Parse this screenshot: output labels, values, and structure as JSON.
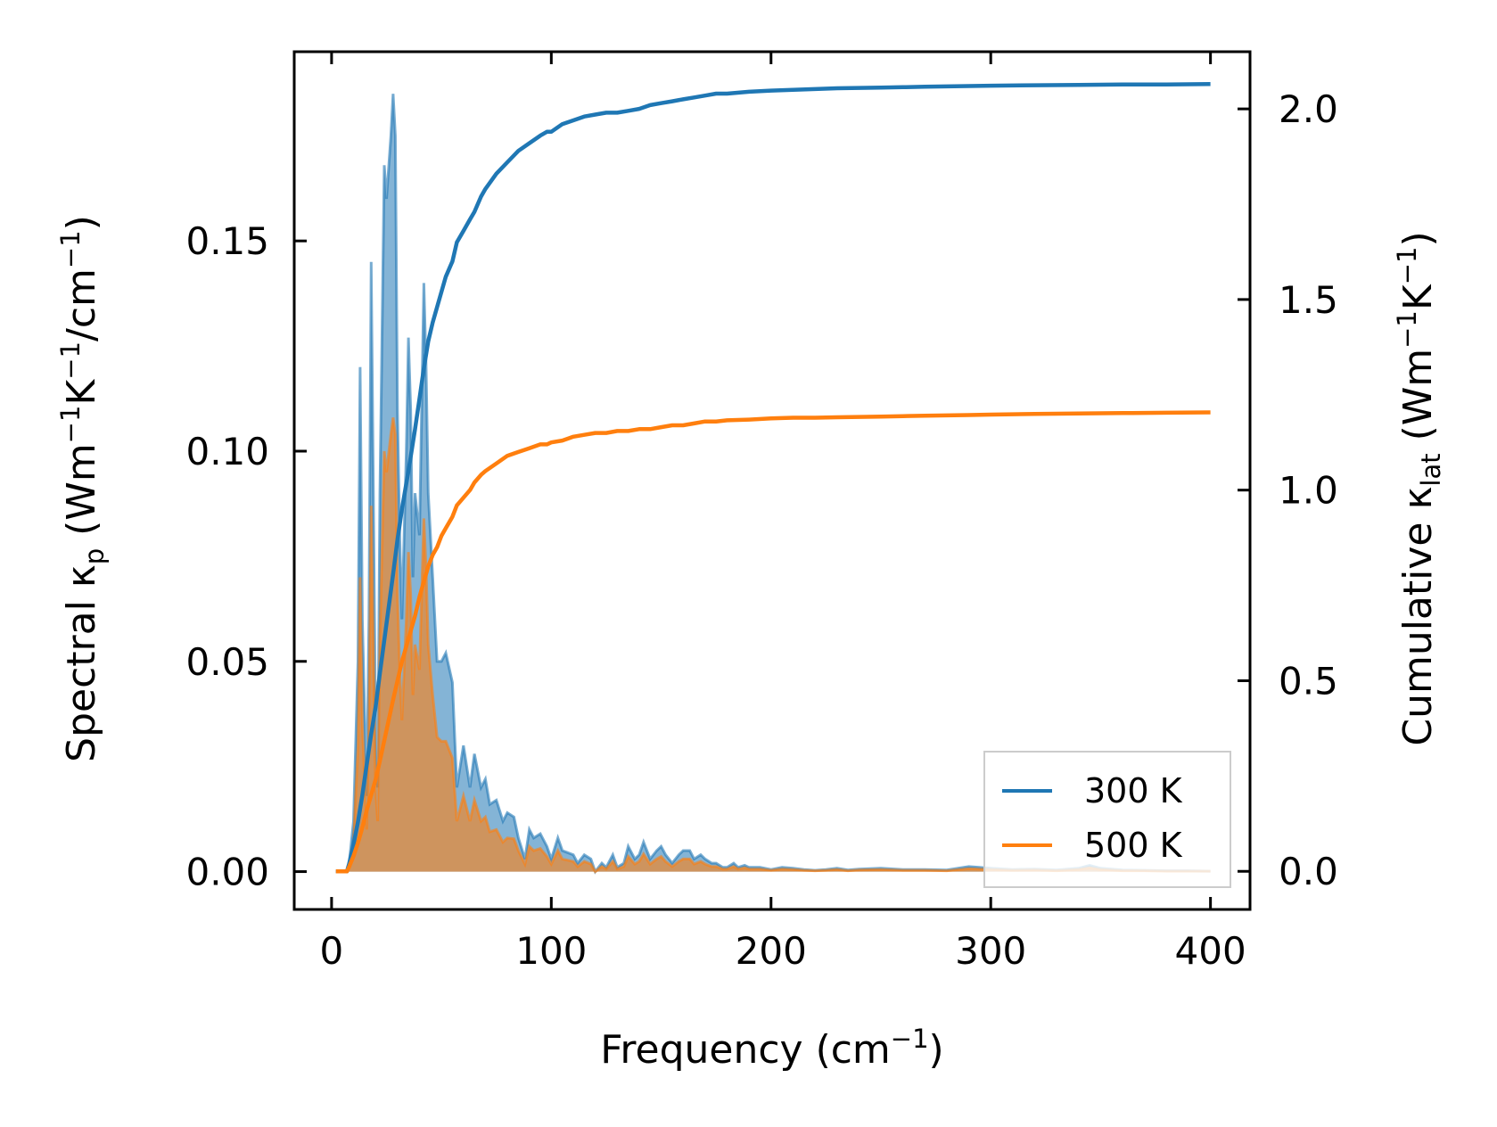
{
  "chart_data": {
    "type": "line",
    "title": "",
    "xlabel": {
      "main": "Frequency (cm",
      "sup": "−1",
      "end": ")"
    },
    "ylabel_left": {
      "a": "Spectral κ",
      "sub": "p",
      "b": " (Wm",
      "sup1": "−1",
      "c": "K",
      "sup2": "−1",
      "d": "/cm",
      "sup3": "−1",
      "e": ")"
    },
    "ylabel_right": {
      "a": "Cumulative κ",
      "sub": "lat",
      "b": " (Wm",
      "sup1": "−1",
      "c": "K",
      "sup2": "−1",
      "e": ")"
    },
    "xlim": [
      -17,
      418
    ],
    "ylim_left": [
      -0.009,
      0.195
    ],
    "ylim_right": [
      -0.1,
      2.15
    ],
    "xticks": [
      0,
      100,
      200,
      300,
      400
    ],
    "xtick_labels": [
      "0",
      "100",
      "200",
      "300",
      "400"
    ],
    "yticks_left": [
      0.0,
      0.05,
      0.1,
      0.15
    ],
    "ytick_labels_left": [
      "0.00",
      "0.05",
      "0.10",
      "0.15"
    ],
    "yticks_right": [
      0.0,
      0.5,
      1.0,
      1.5,
      2.0
    ],
    "ytick_labels_right": [
      "0.0",
      "0.5",
      "1.0",
      "1.5",
      "2.0"
    ],
    "legend": {
      "position": "lower-right",
      "entries": [
        "300 K",
        "500 K"
      ]
    },
    "series": [
      {
        "name": "300 K",
        "color": "#1f77b4",
        "spectral": {
          "x": [
            2,
            5,
            7,
            8,
            10,
            12,
            13,
            14,
            16,
            17,
            18,
            20,
            21,
            22,
            24,
            25,
            27,
            28,
            29,
            30,
            31,
            32,
            34,
            35,
            36,
            37,
            38,
            40,
            41,
            42,
            43,
            44,
            45,
            46,
            48,
            50,
            52,
            55,
            57,
            60,
            63,
            65,
            68,
            70,
            72,
            75,
            78,
            80,
            83,
            85,
            88,
            90,
            92,
            95,
            98,
            100,
            103,
            105,
            110,
            112,
            115,
            118,
            120,
            123,
            125,
            128,
            130,
            133,
            135,
            138,
            140,
            142,
            145,
            148,
            150,
            152,
            155,
            158,
            160,
            163,
            165,
            168,
            170,
            173,
            175,
            178,
            180,
            183,
            185,
            188,
            190,
            195,
            200,
            205,
            210,
            215,
            220,
            225,
            230,
            235,
            240,
            250,
            260,
            270,
            280,
            290,
            300,
            310,
            320,
            330,
            340,
            345,
            350,
            360,
            370,
            380,
            390,
            400
          ],
          "y": [
            0.0,
            0.0,
            0.0,
            0.002,
            0.012,
            0.05,
            0.12,
            0.06,
            0.018,
            0.06,
            0.145,
            0.035,
            0.02,
            0.09,
            0.168,
            0.16,
            0.175,
            0.185,
            0.175,
            0.11,
            0.08,
            0.06,
            0.1,
            0.127,
            0.11,
            0.07,
            0.09,
            0.08,
            0.11,
            0.14,
            0.12,
            0.09,
            0.08,
            0.07,
            0.05,
            0.05,
            0.052,
            0.045,
            0.02,
            0.03,
            0.02,
            0.028,
            0.02,
            0.022,
            0.016,
            0.017,
            0.012,
            0.014,
            0.013,
            0.008,
            0.003,
            0.01,
            0.008,
            0.009,
            0.006,
            0.003,
            0.008,
            0.005,
            0.004,
            0.002,
            0.004,
            0.003,
            0.0,
            0.002,
            0.001,
            0.004,
            0.001,
            0.002,
            0.006,
            0.003,
            0.004,
            0.007,
            0.003,
            0.005,
            0.006,
            0.004,
            0.002,
            0.004,
            0.005,
            0.005,
            0.003,
            0.004,
            0.003,
            0.002,
            0.002,
            0.001,
            0.001,
            0.002,
            0.001,
            0.0015,
            0.001,
            0.001,
            0.0005,
            0.001,
            0.0008,
            0.0005,
            0.0003,
            0.0005,
            0.0008,
            0.0004,
            0.0006,
            0.0008,
            0.0005,
            0.0005,
            0.0004,
            0.0012,
            0.0008,
            0.0005,
            0.0006,
            0.0004,
            0.0008,
            0.0015,
            0.0008,
            0.0004,
            0.0003,
            0.0002,
            0.0002,
            0.0001
          ]
        },
        "cumulative": {
          "x": [
            2,
            5,
            7,
            8,
            10,
            12,
            14,
            16,
            18,
            20,
            22,
            25,
            28,
            30,
            32,
            35,
            38,
            40,
            42,
            44,
            46,
            48,
            50,
            52,
            55,
            57,
            60,
            63,
            65,
            68,
            70,
            75,
            80,
            85,
            90,
            95,
            98,
            100,
            105,
            110,
            115,
            120,
            125,
            130,
            135,
            140,
            145,
            150,
            155,
            160,
            165,
            170,
            175,
            180,
            190,
            200,
            210,
            220,
            230,
            240,
            250,
            260,
            270,
            280,
            290,
            300,
            320,
            340,
            360,
            380,
            400
          ],
          "y": [
            0.0,
            0.0,
            0.0,
            0.02,
            0.07,
            0.13,
            0.2,
            0.28,
            0.36,
            0.43,
            0.52,
            0.65,
            0.78,
            0.87,
            0.95,
            1.05,
            1.16,
            1.24,
            1.32,
            1.39,
            1.44,
            1.48,
            1.52,
            1.56,
            1.6,
            1.65,
            1.68,
            1.71,
            1.73,
            1.77,
            1.79,
            1.83,
            1.86,
            1.89,
            1.91,
            1.93,
            1.94,
            1.94,
            1.96,
            1.97,
            1.98,
            1.985,
            1.99,
            1.99,
            1.995,
            2.0,
            2.01,
            2.015,
            2.02,
            2.025,
            2.03,
            2.035,
            2.04,
            2.04,
            2.045,
            2.048,
            2.05,
            2.052,
            2.054,
            2.055,
            2.056,
            2.057,
            2.058,
            2.059,
            2.06,
            2.061,
            2.062,
            2.063,
            2.064,
            2.064,
            2.065
          ]
        }
      },
      {
        "name": "500 K",
        "color": "#ff7f0e",
        "spectral": {
          "x": [
            2,
            5,
            7,
            8,
            10,
            12,
            13,
            14,
            16,
            17,
            18,
            20,
            21,
            22,
            24,
            25,
            27,
            28,
            29,
            30,
            31,
            32,
            34,
            35,
            36,
            37,
            38,
            40,
            41,
            42,
            43,
            44,
            45,
            46,
            48,
            50,
            52,
            55,
            57,
            60,
            63,
            65,
            68,
            70,
            72,
            75,
            78,
            80,
            83,
            85,
            88,
            90,
            92,
            95,
            98,
            100,
            103,
            105,
            110,
            112,
            115,
            118,
            120,
            123,
            125,
            128,
            130,
            133,
            135,
            138,
            140,
            142,
            145,
            148,
            150,
            152,
            155,
            158,
            160,
            163,
            165,
            168,
            170,
            173,
            175,
            178,
            180,
            183,
            185,
            188,
            190,
            195,
            200,
            205,
            210,
            215,
            220,
            225,
            230,
            235,
            240,
            250,
            260,
            270,
            280,
            290,
            300,
            310,
            320,
            330,
            340,
            345,
            350,
            360,
            370,
            380,
            390,
            400
          ],
          "y": [
            0.0,
            0.0,
            0.0,
            0.001,
            0.007,
            0.03,
            0.07,
            0.035,
            0.01,
            0.035,
            0.087,
            0.02,
            0.012,
            0.055,
            0.1,
            0.095,
            0.104,
            0.108,
            0.104,
            0.066,
            0.048,
            0.036,
            0.06,
            0.076,
            0.066,
            0.042,
            0.054,
            0.048,
            0.066,
            0.084,
            0.072,
            0.054,
            0.048,
            0.042,
            0.032,
            0.031,
            0.031,
            0.027,
            0.012,
            0.018,
            0.012,
            0.017,
            0.012,
            0.013,
            0.0095,
            0.01,
            0.007,
            0.008,
            0.0078,
            0.005,
            0.0018,
            0.006,
            0.005,
            0.0055,
            0.0036,
            0.0018,
            0.005,
            0.003,
            0.0024,
            0.0012,
            0.0024,
            0.0018,
            0.0,
            0.0012,
            0.0006,
            0.0024,
            0.0006,
            0.0012,
            0.0036,
            0.0018,
            0.0024,
            0.0042,
            0.0018,
            0.003,
            0.0036,
            0.0024,
            0.0012,
            0.0024,
            0.003,
            0.003,
            0.0018,
            0.0024,
            0.0018,
            0.0012,
            0.0012,
            0.0006,
            0.0006,
            0.0012,
            0.0006,
            0.0009,
            0.0006,
            0.0006,
            0.0003,
            0.0006,
            0.0005,
            0.0003,
            0.0002,
            0.0003,
            0.0005,
            0.0002,
            0.0004,
            0.0005,
            0.0003,
            0.0003,
            0.0002,
            0.0007,
            0.0005,
            0.0003,
            0.0004,
            0.0002,
            0.0005,
            0.0009,
            0.0005,
            0.0002,
            0.0002,
            0.0001,
            0.0001,
            0.0001
          ]
        },
        "cumulative": {
          "x": [
            2,
            5,
            7,
            8,
            10,
            12,
            14,
            16,
            18,
            20,
            22,
            25,
            28,
            30,
            32,
            35,
            38,
            40,
            42,
            44,
            46,
            48,
            50,
            52,
            55,
            57,
            60,
            63,
            65,
            68,
            70,
            75,
            80,
            85,
            90,
            95,
            98,
            100,
            105,
            110,
            115,
            120,
            125,
            130,
            135,
            140,
            145,
            150,
            155,
            160,
            165,
            170,
            175,
            180,
            190,
            200,
            210,
            220,
            230,
            240,
            250,
            260,
            270,
            280,
            290,
            300,
            320,
            340,
            360,
            380,
            400
          ],
          "y": [
            0.0,
            0.0,
            0.0,
            0.012,
            0.04,
            0.075,
            0.115,
            0.16,
            0.2,
            0.24,
            0.29,
            0.37,
            0.45,
            0.5,
            0.55,
            0.61,
            0.67,
            0.72,
            0.76,
            0.8,
            0.83,
            0.85,
            0.88,
            0.9,
            0.93,
            0.96,
            0.98,
            1.0,
            1.02,
            1.04,
            1.05,
            1.07,
            1.09,
            1.1,
            1.11,
            1.12,
            1.12,
            1.125,
            1.13,
            1.14,
            1.145,
            1.15,
            1.15,
            1.155,
            1.155,
            1.16,
            1.16,
            1.165,
            1.17,
            1.17,
            1.175,
            1.18,
            1.18,
            1.183,
            1.185,
            1.188,
            1.19,
            1.19,
            1.191,
            1.192,
            1.193,
            1.194,
            1.195,
            1.196,
            1.197,
            1.198,
            1.2,
            1.201,
            1.202,
            1.203,
            1.204
          ]
        }
      }
    ]
  }
}
